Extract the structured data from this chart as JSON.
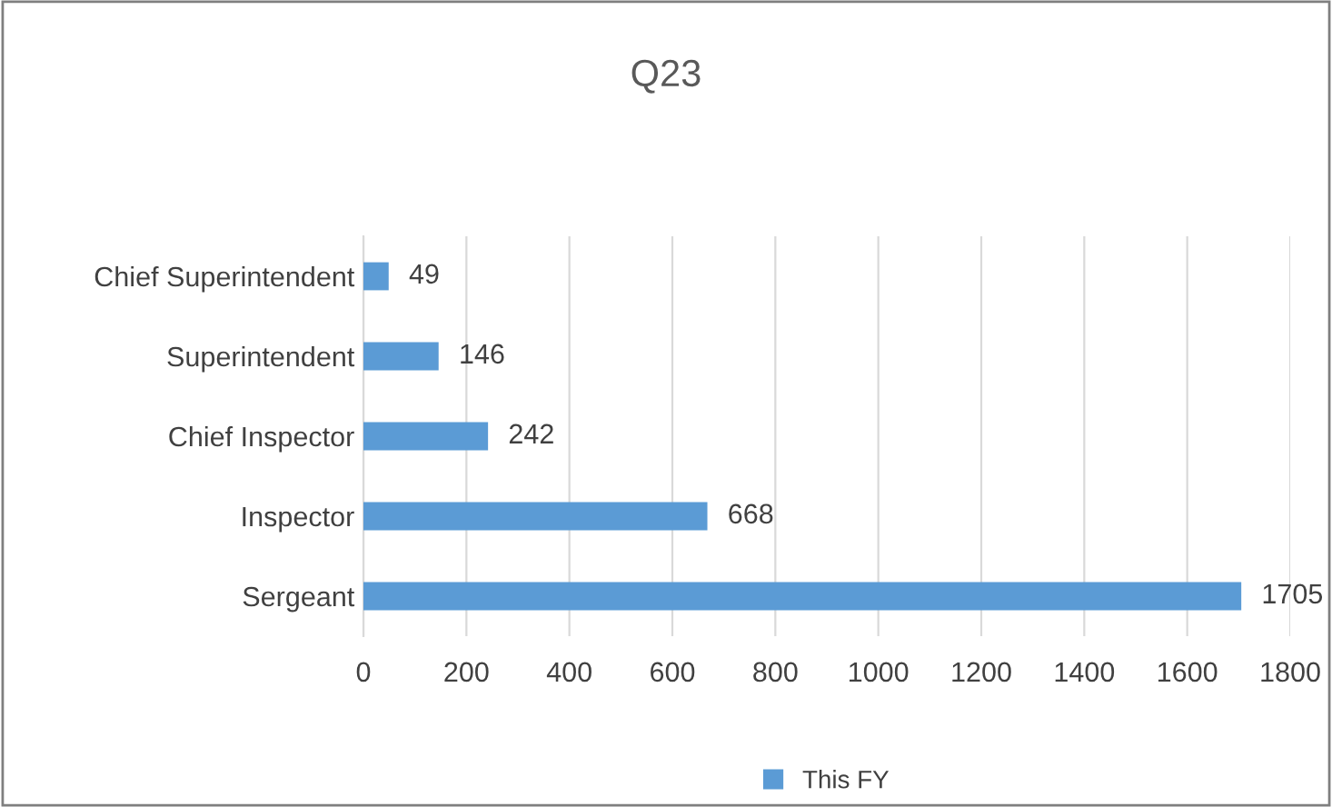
{
  "chart_data": {
    "type": "bar",
    "orientation": "horizontal",
    "title": "Q23",
    "categories": [
      "Chief Superintendent",
      "Superintendent",
      "Chief Inspector",
      "Inspector",
      "Sergeant"
    ],
    "series": [
      {
        "name": "This FY",
        "color": "#5b9bd5",
        "values": [
          49,
          146,
          242,
          668,
          1705
        ]
      }
    ],
    "xlim": [
      0,
      1800
    ],
    "xticks": [
      0,
      200,
      400,
      600,
      800,
      1000,
      1200,
      1400,
      1600,
      1800
    ],
    "grid": "x",
    "legend": "bottom",
    "data_labels": true
  }
}
